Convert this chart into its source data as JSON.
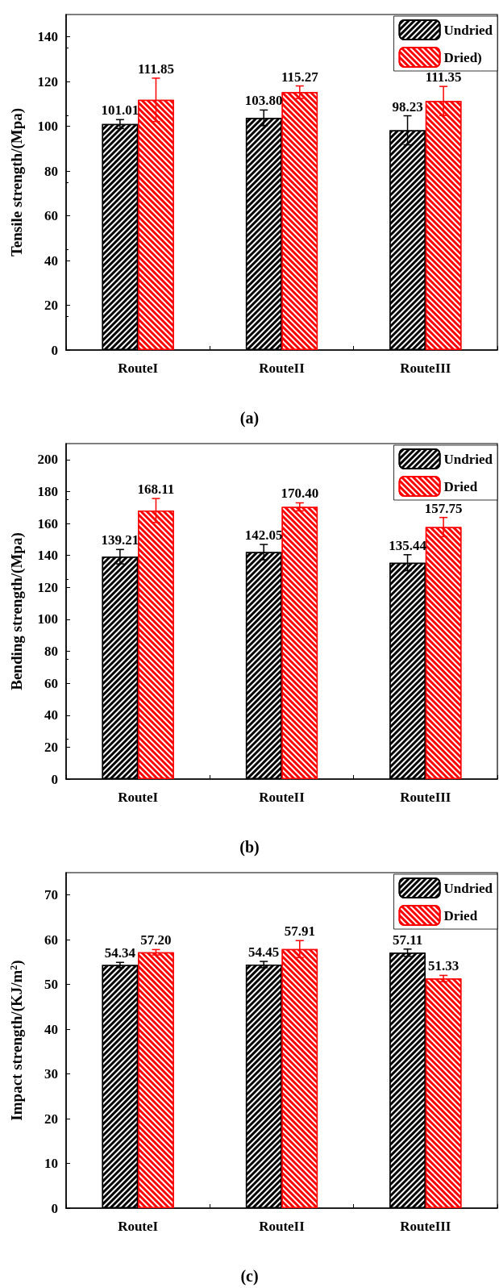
{
  "chart_data": [
    {
      "type": "bar",
      "ylabel": "Tensile strength/(Mpa)",
      "annotations": [
        "(a)"
      ],
      "categories": [
        "RouteI",
        "RouteII",
        "RouteIII"
      ],
      "series": [
        {
          "name": "Undried",
          "color": "#000000",
          "values": [
            101.01,
            103.8,
            98.23
          ],
          "value_labels": [
            "101.01",
            "103.80",
            "98.23"
          ],
          "errors": [
            2,
            3.5,
            6.5
          ]
        },
        {
          "name": "Dried)",
          "color": "#ff0000",
          "values": [
            111.85,
            115.27,
            111.35
          ],
          "value_labels": [
            "111.85",
            "115.27",
            "111.35"
          ],
          "errors": [
            9.7,
            2.8,
            6.5
          ]
        }
      ],
      "ylim": [
        0,
        150
      ],
      "yticks": [
        0,
        20,
        40,
        60,
        80,
        100,
        120,
        140
      ],
      "legend": "top right"
    },
    {
      "type": "bar",
      "ylabel": "Bending strength/(Mpa)",
      "annotations": [
        "(b)"
      ],
      "categories": [
        "RouteI",
        "RouteII",
        "RouteIII"
      ],
      "series": [
        {
          "name": "Undried",
          "color": "#000000",
          "values": [
            139.21,
            142.05,
            135.44
          ],
          "value_labels": [
            "139.21",
            "142.05",
            "135.44"
          ],
          "errors": [
            4.5,
            4.8,
            5
          ]
        },
        {
          "name": "Dried",
          "color": "#ff0000",
          "values": [
            168.11,
            170.4,
            157.75
          ],
          "value_labels": [
            "168.11",
            "170.40",
            "157.75"
          ],
          "errors": [
            7.5,
            2.5,
            6
          ]
        }
      ],
      "ylim": [
        0,
        210
      ],
      "yticks": [
        0,
        20,
        40,
        60,
        80,
        100,
        120,
        140,
        160,
        180,
        200
      ],
      "legend": "top right"
    },
    {
      "type": "bar",
      "ylabel": "Impact strength/(KJ/m$^{2}$)",
      "annotations": [
        "(c)"
      ],
      "categories": [
        "RouteI",
        "RouteII",
        "RouteIII"
      ],
      "series": [
        {
          "name": "Undried",
          "color": "#000000",
          "values": [
            54.34,
            54.45,
            57.11
          ],
          "value_labels": [
            "54.34",
            "54.45",
            "57.11"
          ],
          "errors": [
            0.6,
            0.7,
            0.8
          ]
        },
        {
          "name": "Dried",
          "color": "#ff0000",
          "values": [
            57.2,
            57.91,
            51.33
          ],
          "value_labels": [
            "57.20",
            "57.91",
            "51.33"
          ],
          "errors": [
            0.6,
            1.9,
            0.7
          ]
        }
      ],
      "ylim": [
        0,
        75
      ],
      "yticks": [
        0,
        10,
        20,
        30,
        40,
        50,
        60,
        70
      ],
      "legend": "top right"
    }
  ]
}
